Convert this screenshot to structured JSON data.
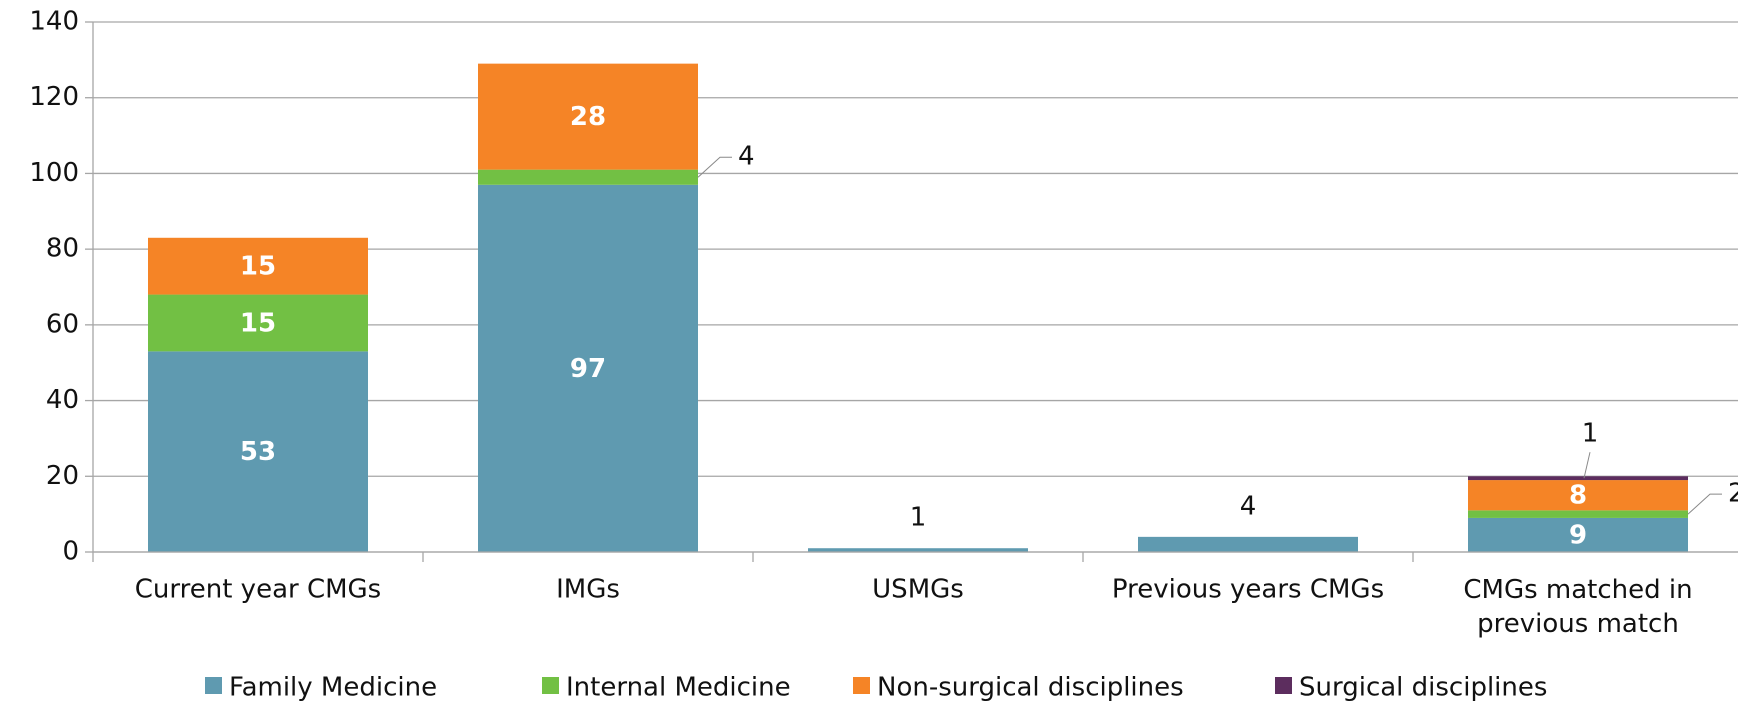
{
  "chart_data": {
    "type": "bar",
    "stacked": true,
    "categories": [
      "Current year CMGs",
      "IMGs",
      "USMGs",
      "Previous years CMGs",
      "CMGs matched in previous match"
    ],
    "series": [
      {
        "name": "Family Medicine",
        "color": "#5f9ab0",
        "values": [
          53,
          97,
          1,
          4,
          9
        ]
      },
      {
        "name": "Internal Medicine",
        "color": "#72c044",
        "values": [
          15,
          4,
          0,
          0,
          2
        ]
      },
      {
        "name": "Non-surgical disciplines",
        "color": "#f58426",
        "values": [
          15,
          28,
          0,
          0,
          8
        ]
      },
      {
        "name": "Surgical disciplines",
        "color": "#5c2d5e",
        "values": [
          0,
          0,
          0,
          0,
          1
        ]
      }
    ],
    "ylim": [
      0,
      140
    ],
    "yticks": [
      0,
      20,
      40,
      60,
      80,
      100,
      120,
      140
    ],
    "grid": true,
    "legend": "bottom"
  }
}
